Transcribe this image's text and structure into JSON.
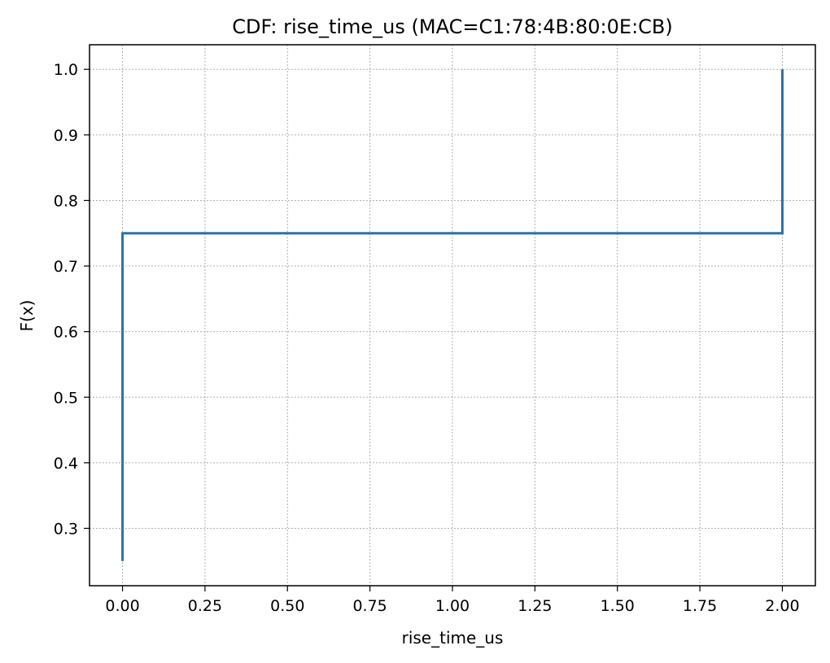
{
  "chart_data": {
    "type": "line",
    "title": "CDF: rise_time_us (MAC=C1:78:4B:80:0E:CB)",
    "xlabel": "rise_time_us",
    "ylabel": "F(x)",
    "xlim": [
      -0.1,
      2.1
    ],
    "ylim": [
      0.2125,
      1.0375
    ],
    "xticks": [
      0.0,
      0.25,
      0.5,
      0.75,
      1.0,
      1.25,
      1.5,
      1.75,
      2.0
    ],
    "xtick_labels": [
      "0.00",
      "0.25",
      "0.50",
      "0.75",
      "1.00",
      "1.25",
      "1.50",
      "1.75",
      "2.00"
    ],
    "yticks": [
      0.3,
      0.4,
      0.5,
      0.6,
      0.7,
      0.8,
      0.9,
      1.0
    ],
    "ytick_labels": [
      "0.3",
      "0.4",
      "0.5",
      "0.6",
      "0.7",
      "0.8",
      "0.9",
      "1.0"
    ],
    "grid": true,
    "step": "post",
    "series": [
      {
        "color": "#2a72aa",
        "x": [
          0.0,
          0.0,
          2.0,
          2.0
        ],
        "y": [
          0.25,
          0.75,
          0.75,
          1.0
        ]
      }
    ]
  }
}
